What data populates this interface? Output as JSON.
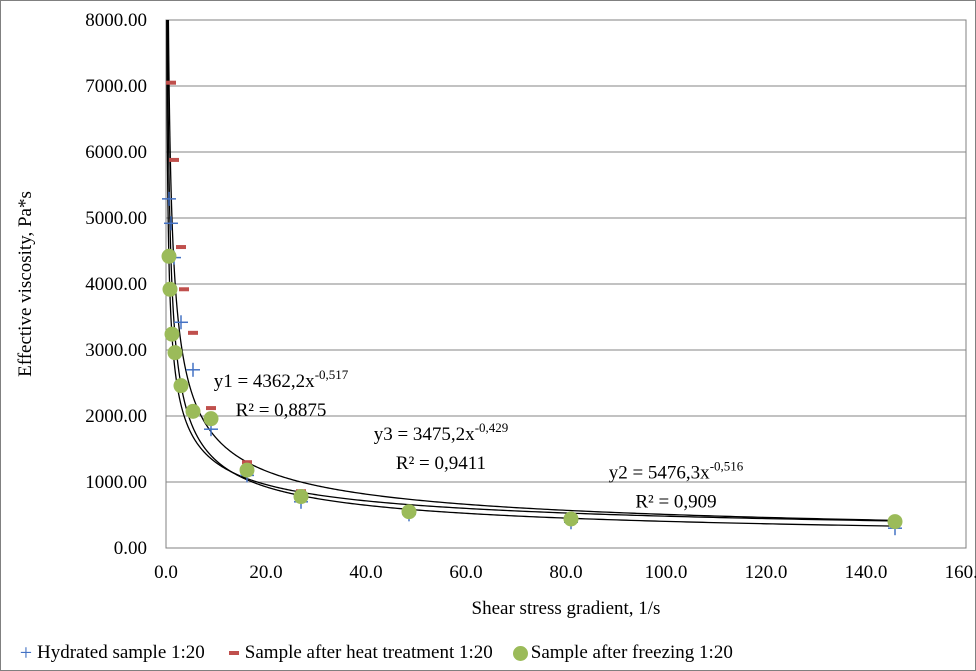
{
  "chart_data": {
    "type": "scatter",
    "xlabel": "Shear stress gradient, 1/s",
    "ylabel": "Effective viscosity, Pa*s",
    "xlim": [
      0,
      160
    ],
    "ylim": [
      0,
      8000
    ],
    "x_ticks": [
      "0.0",
      "20.0",
      "40.0",
      "60.0",
      "80.0",
      "100.0",
      "120.0",
      "140.0",
      "160.0"
    ],
    "y_ticks": [
      "0.00",
      "1000.00",
      "2000.00",
      "3000.00",
      "4000.00",
      "5000.00",
      "6000.00",
      "7000.00",
      "8000.00"
    ],
    "grid": "horizontal",
    "legend_position": "bottom",
    "series": [
      {
        "name": "Hydrated sample 1:20",
        "marker": "plus",
        "color": "#4472c4",
        "points": [
          [
            0.6,
            5290
          ],
          [
            1.0,
            4920
          ],
          [
            1.6,
            4400
          ],
          [
            3.0,
            3420
          ],
          [
            5.4,
            2700
          ],
          [
            9.0,
            1800
          ],
          [
            16.2,
            1100
          ],
          [
            27.0,
            700
          ],
          [
            48.6,
            510
          ],
          [
            81.0,
            390
          ],
          [
            145.8,
            300
          ]
        ]
      },
      {
        "name": "Sample after heat treatment 1:20",
        "marker": "dash",
        "color": "#c0504d",
        "points": [
          [
            1.0,
            7050
          ],
          [
            1.6,
            5880
          ],
          [
            3.0,
            4560
          ],
          [
            3.6,
            3920
          ],
          [
            5.4,
            3260
          ],
          [
            9.0,
            2120
          ],
          [
            16.2,
            1300
          ],
          [
            27.0,
            860
          ],
          [
            48.6,
            600
          ],
          [
            81.0,
            490
          ],
          [
            145.8,
            420
          ]
        ]
      },
      {
        "name": "Sample after freezing 1:20",
        "marker": "circle",
        "color": "#9bbb59",
        "points": [
          [
            0.6,
            4420
          ],
          [
            0.8,
            3920
          ],
          [
            1.2,
            3240
          ],
          [
            1.8,
            2960
          ],
          [
            3.0,
            2460
          ],
          [
            5.4,
            2070
          ],
          [
            9.0,
            1960
          ],
          [
            16.2,
            1180
          ],
          [
            27.0,
            780
          ],
          [
            48.6,
            550
          ],
          [
            81.0,
            440
          ],
          [
            145.8,
            400
          ]
        ]
      }
    ],
    "trendlines": [
      {
        "type": "power",
        "a": 4362.2,
        "b": -0.517
      },
      {
        "type": "power",
        "a": 5476.3,
        "b": -0.516
      },
      {
        "type": "power",
        "a": 3475.2,
        "b": -0.429
      }
    ],
    "annotations": [
      {
        "id": "eq1",
        "main": "y1 = 4362,2x",
        "exp": "-0,517",
        "r2": "R² = 0,8875",
        "at": [
          23,
          2440
        ]
      },
      {
        "id": "eq3",
        "main": "y3 = 3475,2x",
        "exp": "-0,429",
        "r2": "R² = 0,9411",
        "at": [
          55,
          1640
        ]
      },
      {
        "id": "eq2",
        "main": "y2 = 5476,3x",
        "exp": "-0,516",
        "r2": "R² = 0,909",
        "at": [
          102,
          1050
        ]
      }
    ]
  }
}
